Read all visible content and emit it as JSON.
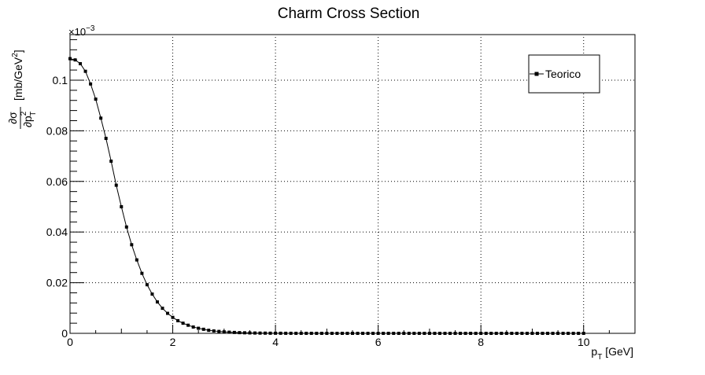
{
  "chart_data": {
    "type": "line",
    "title": "Charm Cross Section",
    "xlabel": "p_T [GeV]",
    "xlabel_main": "p",
    "xlabel_sub": "T",
    "xlabel_unit": " [GeV]",
    "ylabel_num": "∂σ",
    "ylabel_den": "∂p",
    "ylabel_den_sup": "2",
    "ylabel_den_sub": "T",
    "ylabel_unit_pre": "[mb/GeV",
    "ylabel_unit_sup": "2",
    "ylabel_unit_post": "]",
    "y_exponent_base": "×10",
    "y_exponent_power": "−3",
    "xlim": [
      0,
      11
    ],
    "ylim": [
      0,
      0.000118
    ],
    "grid": true,
    "legend_position": "top-right",
    "x_ticks": [
      "0",
      "2",
      "4",
      "6",
      "8",
      "10"
    ],
    "y_ticks": [
      "0",
      "0.02",
      "0.04",
      "0.06",
      "0.08",
      "0.1"
    ],
    "series": [
      {
        "name": "Teorico",
        "marker": "square",
        "color": "#000000",
        "x": [
          0.0,
          0.1,
          0.2,
          0.3,
          0.4,
          0.5,
          0.6,
          0.7,
          0.8,
          0.9,
          1.0,
          1.1,
          1.2,
          1.3,
          1.4,
          1.5,
          1.6,
          1.7,
          1.8,
          1.9,
          2.0,
          2.1,
          2.2,
          2.3,
          2.4,
          2.5,
          2.6,
          2.7,
          2.8,
          2.9,
          3.0,
          3.1,
          3.2,
          3.3,
          3.4,
          3.5,
          3.6,
          3.7,
          3.8,
          3.9,
          4.0,
          4.1,
          4.2,
          4.3,
          4.4,
          4.5,
          4.6,
          4.7,
          4.8,
          4.9,
          5.0,
          5.1,
          5.2,
          5.3,
          5.4,
          5.5,
          5.6,
          5.7,
          5.8,
          5.9,
          6.0,
          6.1,
          6.2,
          6.3,
          6.4,
          6.5,
          6.6,
          6.7,
          6.8,
          6.9,
          7.0,
          7.1,
          7.2,
          7.3,
          7.4,
          7.5,
          7.6,
          7.7,
          7.8,
          7.9,
          8.0,
          8.1,
          8.2,
          8.3,
          8.4,
          8.5,
          8.6,
          8.7,
          8.8,
          8.9,
          9.0,
          9.1,
          9.2,
          9.3,
          9.4,
          9.5,
          9.6,
          9.7,
          9.8,
          9.9,
          10.0
        ],
        "y": [
          0.0001085,
          0.000108,
          0.0001065,
          0.0001035,
          9.85e-05,
          9.25e-05,
          8.5e-05,
          7.7e-05,
          6.8e-05,
          5.85e-05,
          5e-05,
          4.2e-05,
          3.5e-05,
          2.9e-05,
          2.37e-05,
          1.92e-05,
          1.55e-05,
          1.24e-05,
          9.9e-06,
          7.9e-06,
          6.3e-06,
          5e-06,
          4e-06,
          3.2e-06,
          2.5e-06,
          2e-06,
          1.6e-06,
          1.2e-06,
          9.5e-07,
          7.5e-07,
          5.8e-07,
          4.5e-07,
          3.5e-07,
          2.7e-07,
          2.1e-07,
          1.6e-07,
          1.2e-07,
          9e-08,
          7e-08,
          5e-08,
          4e-08,
          3e-08,
          2e-08,
          2e-08,
          1e-08,
          1e-08,
          1e-08,
          1e-08,
          0.0,
          0.0,
          0.0,
          0.0,
          0.0,
          0.0,
          0.0,
          0.0,
          0.0,
          0.0,
          0.0,
          0.0,
          0.0,
          0.0,
          0.0,
          0.0,
          0.0,
          0.0,
          0.0,
          0.0,
          0.0,
          0.0,
          0.0,
          0.0,
          0.0,
          0.0,
          0.0,
          0.0,
          0.0,
          0.0,
          0.0,
          0.0,
          0.0,
          0.0,
          0.0,
          0.0,
          0.0,
          0.0,
          0.0,
          0.0,
          0.0,
          0.0,
          0.0,
          0.0,
          0.0,
          0.0,
          0.0,
          0.0,
          0.0,
          0.0,
          0.0,
          0.0,
          0.0
        ]
      }
    ]
  }
}
